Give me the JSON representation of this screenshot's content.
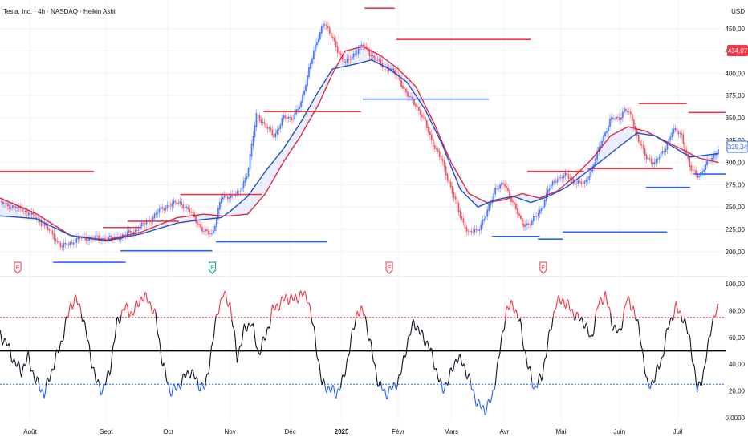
{
  "header": {
    "symbol_line": "Tesla, Inc. · 4h · NASDAQ · Heikin Ashi"
  },
  "currency": "USD",
  "badges": {
    "last_price": "434,07",
    "current_price": "325,34"
  },
  "colors": {
    "up": "#2962ff",
    "down": "#f23645",
    "ema_fast": "#1e50c8",
    "ema_slow": "#e0283c",
    "osc": "#131722",
    "osc_high": "#f23645",
    "osc_low": "#2962ff",
    "fill": "#c9cff5",
    "grid": "#f0f3fa",
    "axis_text": "#131722"
  },
  "earnings_marker": "E",
  "chart_data": [
    {
      "type": "candlestick",
      "title": "Tesla, Inc. · 4h · NASDAQ · Heikin Ashi",
      "ylabel": "USD",
      "ylim": [
        180,
        475
      ],
      "y_ticks": [
        "200,00",
        "225,00",
        "250,00",
        "275,00",
        "300,00",
        "325,00",
        "350,00",
        "375,00",
        "400,00",
        "425,00",
        "450,00"
      ],
      "x_ticks": [
        "Août",
        "Sept",
        "Oct",
        "Nov",
        "Déc",
        "2025",
        "Févr",
        "Mars",
        "Avr",
        "Mai",
        "Juin",
        "Juil"
      ],
      "x_tick_pos": [
        0.7,
        5.0,
        8.5,
        12.0,
        15.4,
        18.3,
        21.5,
        24.5,
        27.5,
        30.7,
        34.0,
        37.3
      ],
      "x_range": [
        -1.0,
        40.0
      ],
      "series": [
        {
          "name": "",
          "x": [
            -1,
            0.5,
            1.5,
            2.5,
            3.5,
            4.5,
            5.5,
            6.5,
            7.5,
            8.0,
            8.5,
            9.2,
            10.0,
            10.5,
            11.0,
            11.5,
            12.0,
            12.5,
            13.0,
            13.5,
            14.0,
            14.5,
            15.0,
            15.5,
            16.0,
            16.5,
            17.0,
            17.3,
            17.6,
            18.0,
            18.5,
            19.0,
            19.5,
            20.0,
            20.5,
            21.0,
            21.5,
            22.0,
            22.5,
            23.0,
            23.5,
            24.0,
            24.5,
            25.0,
            25.5,
            26.0,
            26.5,
            27.0,
            27.5,
            28.0,
            28.5,
            29.0,
            29.5,
            30.0,
            30.5,
            31.0,
            31.5,
            32.0,
            32.5,
            33.0,
            33.5,
            34.0,
            34.3,
            34.7,
            35.0,
            35.5,
            36.0,
            36.5,
            37.0,
            37.5,
            38.0,
            38.5,
            39.0,
            39.6
          ],
          "values": [
            255,
            245,
            230,
            205,
            215,
            215,
            215,
            222,
            236,
            246,
            252,
            255,
            238,
            222,
            220,
            260,
            263,
            265,
            290,
            355,
            340,
            330,
            350,
            350,
            365,
            410,
            440,
            460,
            445,
            430,
            410,
            422,
            432,
            420,
            410,
            405,
            396,
            375,
            365,
            345,
            320,
            300,
            270,
            240,
            220,
            225,
            242,
            272,
            275,
            255,
            230,
            232,
            245,
            270,
            283,
            285,
            278,
            275,
            295,
            325,
            348,
            350,
            360,
            350,
            330,
            305,
            300,
            312,
            336,
            332,
            292,
            285,
            300,
            315
          ]
        },
        {
          "name": "",
          "x": [
            -1,
            1,
            3,
            5,
            7,
            9,
            10.5,
            11.5,
            12,
            13,
            14,
            15,
            16,
            17,
            17.8,
            19,
            20,
            21,
            22,
            23,
            24,
            25,
            26,
            27,
            28,
            29,
            30,
            31,
            32,
            33,
            34,
            35,
            36,
            37,
            38,
            39.6
          ],
          "values": [
            240,
            237,
            218,
            212,
            220,
            232,
            236,
            238,
            245,
            262,
            290,
            315,
            345,
            380,
            405,
            410,
            415,
            405,
            390,
            360,
            320,
            270,
            250,
            258,
            262,
            255,
            262,
            272,
            287,
            302,
            318,
            333,
            330,
            318,
            306,
            310
          ]
        },
        {
          "name": "",
          "x": [
            -1,
            1,
            3,
            5,
            7,
            9,
            10.5,
            11.5,
            12,
            13,
            14,
            15,
            16,
            17,
            17.8,
            18.5,
            19.5,
            20.5,
            21.5,
            22.5,
            23.5,
            24.5,
            25.5,
            26.5,
            27.5,
            28.5,
            29.5,
            30.5,
            31.5,
            32.5,
            33.5,
            34.5,
            35.5,
            36.5,
            37.5,
            38.5,
            39.6
          ],
          "values": [
            260,
            243,
            218,
            213,
            222,
            238,
            242,
            240,
            240,
            242,
            265,
            300,
            330,
            365,
            400,
            425,
            430,
            420,
            405,
            385,
            345,
            300,
            265,
            255,
            258,
            265,
            260,
            268,
            285,
            305,
            330,
            340,
            335,
            325,
            315,
            305,
            300
          ]
        }
      ],
      "support_resistance": [
        {
          "side": "high",
          "from": -1.0,
          "to": 4.3,
          "value": 290
        },
        {
          "side": "low",
          "from": 2.0,
          "to": 6.1,
          "value": 188
        },
        {
          "side": "high",
          "from": 4.8,
          "to": 7.0,
          "value": 227
        },
        {
          "side": "high",
          "from": 6.2,
          "to": 9.1,
          "value": 234
        },
        {
          "side": "low",
          "from": 5.8,
          "to": 11.0,
          "value": 201
        },
        {
          "side": "high",
          "from": 9.2,
          "to": 13.8,
          "value": 264
        },
        {
          "side": "low",
          "from": 11.2,
          "to": 17.5,
          "value": 211
        },
        {
          "side": "high",
          "from": 13.9,
          "to": 19.4,
          "value": 357
        },
        {
          "side": "high",
          "from": 19.6,
          "to": 21.3,
          "value": 473
        },
        {
          "side": "high",
          "from": 21.4,
          "to": 29.0,
          "value": 438
        },
        {
          "side": "low",
          "from": 19.5,
          "to": 26.6,
          "value": 371
        },
        {
          "side": "high",
          "from": 28.8,
          "to": 32.0,
          "value": 290
        },
        {
          "side": "high",
          "from": 32.2,
          "to": 37.0,
          "value": 293
        },
        {
          "side": "low",
          "from": 26.8,
          "to": 29.5,
          "value": 217
        },
        {
          "side": "low",
          "from": 29.4,
          "to": 30.8,
          "value": 214
        },
        {
          "side": "low",
          "from": 30.8,
          "to": 36.7,
          "value": 222
        },
        {
          "side": "high",
          "from": 35.1,
          "to": 37.8,
          "value": 366
        },
        {
          "side": "high",
          "from": 37.9,
          "to": 40.0,
          "value": 356
        },
        {
          "side": "low",
          "from": 35.5,
          "to": 38.0,
          "value": 272
        },
        {
          "side": "low",
          "from": 38.2,
          "to": 40.0,
          "value": 287
        }
      ],
      "earnings_x": [
        0.0,
        11.0,
        21.0,
        29.7
      ]
    },
    {
      "type": "line",
      "title": "",
      "ylim": [
        0,
        100
      ],
      "y_ticks": [
        "0,0000",
        "20,00",
        "40,00",
        "60,00",
        "80,00",
        "100,00"
      ],
      "levels": [
        75,
        50,
        25
      ],
      "series": [
        {
          "name": "",
          "x": [
            -1,
            -0.6,
            -0.2,
            0.2,
            0.6,
            1.0,
            1.5,
            2.0,
            2.5,
            3.0,
            3.3,
            3.6,
            4.0,
            4.4,
            4.8,
            5.2,
            5.6,
            6.0,
            6.5,
            7.0,
            7.4,
            7.8,
            8.2,
            8.6,
            9.0,
            9.4,
            9.8,
            10.2,
            10.6,
            11.0,
            11.3,
            11.6,
            12.0,
            12.4,
            12.8,
            13.2,
            13.6,
            14.0,
            14.4,
            14.8,
            15.2,
            15.6,
            16.0,
            16.4,
            16.8,
            17.2,
            17.6,
            18.0,
            18.4,
            18.8,
            19.2,
            19.6,
            20.0,
            20.4,
            20.8,
            21.2,
            21.6,
            22.0,
            22.4,
            22.8,
            23.2,
            23.6,
            24.0,
            24.4,
            24.8,
            25.2,
            25.6,
            26.0,
            26.4,
            26.8,
            27.2,
            27.6,
            28.0,
            28.4,
            28.8,
            29.2,
            29.6,
            30.0,
            30.4,
            30.8,
            31.2,
            31.6,
            32.0,
            32.4,
            32.8,
            33.2,
            33.6,
            34.0,
            34.4,
            34.8,
            35.2,
            35.6,
            36.0,
            36.4,
            36.8,
            37.2,
            37.6,
            38.0,
            38.4,
            38.8,
            39.2,
            39.6
          ],
          "values": [
            62,
            55,
            42,
            35,
            45,
            28,
            18,
            38,
            58,
            85,
            88,
            80,
            55,
            28,
            20,
            35,
            70,
            82,
            78,
            90,
            88,
            75,
            40,
            20,
            22,
            30,
            35,
            25,
            22,
            55,
            80,
            92,
            85,
            45,
            65,
            72,
            48,
            60,
            80,
            85,
            90,
            88,
            92,
            90,
            60,
            25,
            22,
            18,
            28,
            55,
            80,
            78,
            50,
            25,
            18,
            22,
            30,
            55,
            72,
            62,
            55,
            38,
            20,
            30,
            45,
            40,
            25,
            10,
            6,
            14,
            45,
            80,
            85,
            70,
            40,
            22,
            30,
            58,
            85,
            88,
            82,
            75,
            72,
            58,
            84,
            92,
            70,
            62,
            88,
            82,
            60,
            22,
            30,
            44,
            70,
            82,
            75,
            58,
            20,
            35,
            70,
            82
          ]
        }
      ]
    }
  ]
}
